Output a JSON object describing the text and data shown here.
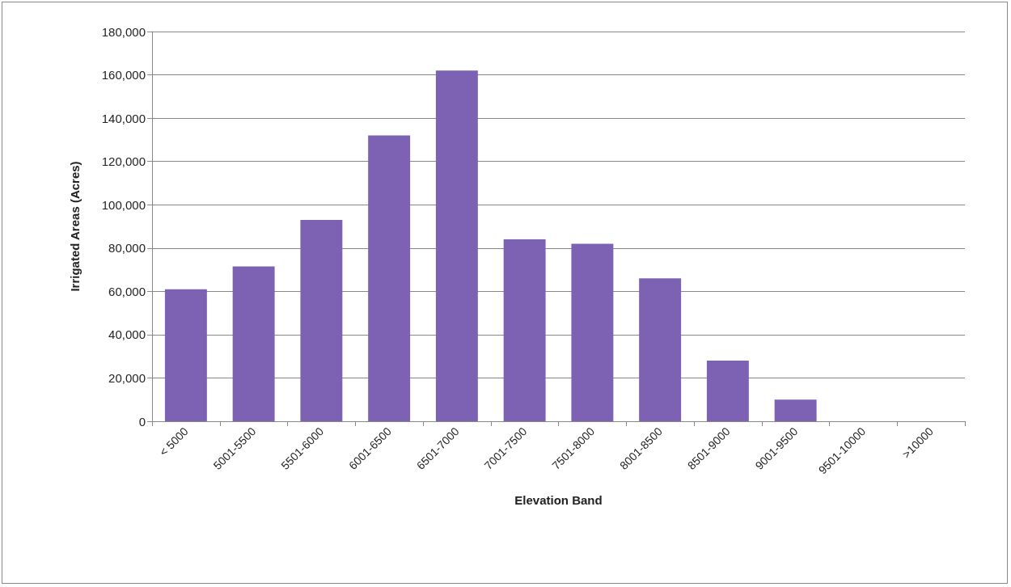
{
  "chart_data": {
    "type": "bar",
    "xlabel": "Elevation Band",
    "ylabel": "Irrigated Areas (Acres)",
    "categories": [
      "< 5000",
      "5001-5500",
      "5501-6000",
      "6001-6500",
      "6501-7000",
      "7001-7500",
      "7501-8000",
      "8001-8500",
      "8501-9000",
      "9001-9500",
      "9501-10000",
      ">10000"
    ],
    "values": [
      61000,
      71500,
      93000,
      132000,
      162000,
      84000,
      82000,
      66000,
      28000,
      10000,
      0,
      0
    ],
    "color": "#7d62b3",
    "ylim": [
      0,
      180000
    ],
    "yticks": [
      0,
      {
        "value": 20000,
        "label": "20,000"
      },
      {
        "value": 40000,
        "label": "40,000"
      },
      {
        "value": 60000,
        "label": "60,000"
      },
      {
        "value": 80000,
        "label": "80,000"
      },
      {
        "value": 100000,
        "label": "100,000"
      },
      {
        "value": 120000,
        "label": "120,000"
      },
      {
        "value": 140000,
        "label": "140,000"
      },
      {
        "value": 160000,
        "label": "160,000"
      },
      {
        "value": 180000,
        "label": "180,000"
      }
    ],
    "grid": "y"
  }
}
